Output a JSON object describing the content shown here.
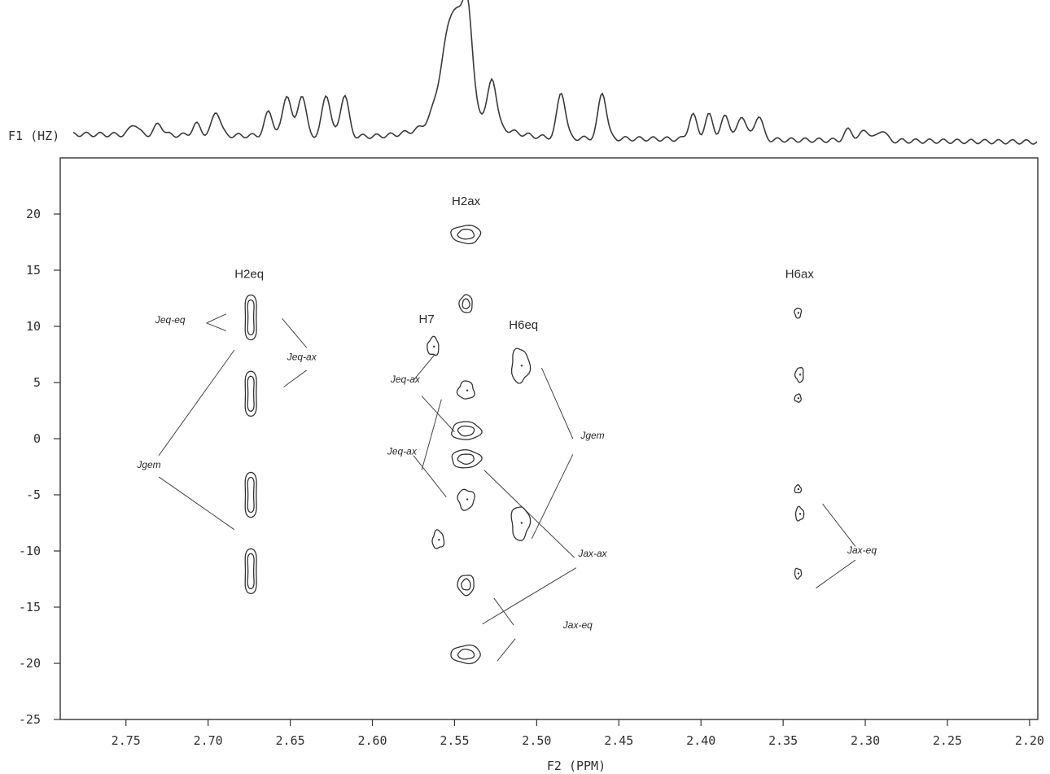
{
  "chart_data": {
    "type": "contour",
    "x_axis": {
      "label": "F2 (PPM)",
      "range": [
        2.79,
        2.195
      ],
      "reversed": true,
      "ticks": [
        2.75,
        2.7,
        2.65,
        2.6,
        2.55,
        2.5,
        2.45,
        2.4,
        2.35,
        2.3,
        2.25,
        2.2
      ],
      "tick_labels": [
        "2.75",
        "2.70",
        "2.65",
        "2.60",
        "2.55",
        "2.50",
        "2.45",
        "2.40",
        "2.35",
        "2.30",
        "2.25",
        "2.20"
      ]
    },
    "y_axis": {
      "label": "F1 (HZ)",
      "range": [
        -25,
        25
      ],
      "ticks": [
        20,
        15,
        10,
        5,
        0,
        -5,
        -10,
        -15,
        -20,
        -25
      ],
      "tick_labels": [
        "20",
        "15",
        "10",
        "5",
        "0",
        "-5",
        "-10",
        "-15",
        "-20",
        "-25"
      ]
    },
    "grid": false,
    "projection": {
      "axis": "F2",
      "peaks_ppm": [
        2.745,
        2.73,
        2.707,
        2.695,
        2.663,
        2.652,
        2.643,
        2.628,
        2.617,
        2.55,
        2.542,
        2.527,
        2.485,
        2.46,
        2.405,
        2.395,
        2.385,
        2.375,
        2.365,
        2.31,
        2.3,
        2.29
      ]
    },
    "peak_labels": [
      {
        "text": "H2ax",
        "x": 2.543,
        "y": 20.8
      },
      {
        "text": "H2eq",
        "x": 2.675,
        "y": 14.3
      },
      {
        "text": "H7",
        "x": 2.567,
        "y": 10.3
      },
      {
        "text": "H6eq",
        "x": 2.508,
        "y": 9.8
      },
      {
        "text": "H6ax",
        "x": 2.34,
        "y": 14.3
      }
    ],
    "coupling_labels": [
      {
        "text": "Jeq-eq",
        "x": 2.723,
        "y": 10.3
      },
      {
        "text": "Jeq-ax",
        "x": 2.643,
        "y": 7.0
      },
      {
        "text": "Jeq-ax",
        "x": 2.58,
        "y": 5.0
      },
      {
        "text": "Jeq-ax",
        "x": 2.582,
        "y": -1.4
      },
      {
        "text": "Jgem",
        "x": 2.736,
        "y": -2.6
      },
      {
        "text": "Jgem",
        "x": 2.466,
        "y": 0.0
      },
      {
        "text": "Jax-ax",
        "x": 2.466,
        "y": -10.5
      },
      {
        "text": "Jax-eq",
        "x": 2.475,
        "y": -16.9
      },
      {
        "text": "Jax-eq",
        "x": 2.302,
        "y": -10.2
      }
    ],
    "cross_peaks": [
      {
        "group": "H2eq",
        "x": 2.674,
        "y": 10.8,
        "rx": 0.006,
        "ry": 2.0,
        "shape": "hourglass"
      },
      {
        "group": "H2eq",
        "x": 2.674,
        "y": 4.0,
        "rx": 0.006,
        "ry": 2.0,
        "shape": "hourglass"
      },
      {
        "group": "H2eq",
        "x": 2.674,
        "y": -5.0,
        "rx": 0.006,
        "ry": 2.0,
        "shape": "hourglass"
      },
      {
        "group": "H2eq",
        "x": 2.674,
        "y": -11.8,
        "rx": 0.006,
        "ry": 2.0,
        "shape": "hourglass"
      },
      {
        "group": "H2ax",
        "x": 2.543,
        "y": 18.2,
        "rx": 0.009,
        "ry": 0.8,
        "shape": "nested"
      },
      {
        "group": "H2ax",
        "x": 2.543,
        "y": 12.0,
        "rx": 0.004,
        "ry": 0.8,
        "shape": "nested"
      },
      {
        "group": "H2ax",
        "x": 2.543,
        "y": 4.3,
        "rx": 0.005,
        "ry": 0.8,
        "shape": "single"
      },
      {
        "group": "H2ax",
        "x": 2.543,
        "y": 0.7,
        "rx": 0.009,
        "ry": 0.8,
        "shape": "nested"
      },
      {
        "group": "H2ax",
        "x": 2.543,
        "y": -1.8,
        "rx": 0.009,
        "ry": 0.8,
        "shape": "nested"
      },
      {
        "group": "H2ax",
        "x": 2.543,
        "y": -5.4,
        "rx": 0.005,
        "ry": 0.9,
        "shape": "single"
      },
      {
        "group": "H2ax",
        "x": 2.543,
        "y": -13.0,
        "rx": 0.005,
        "ry": 0.9,
        "shape": "nested"
      },
      {
        "group": "H2ax",
        "x": 2.543,
        "y": -19.2,
        "rx": 0.009,
        "ry": 0.8,
        "shape": "nested"
      },
      {
        "group": "H7",
        "x": 2.563,
        "y": 8.2,
        "rx": 0.0035,
        "ry": 0.8,
        "shape": "single"
      },
      {
        "group": "H7",
        "x": 2.56,
        "y": -9.0,
        "rx": 0.0035,
        "ry": 0.8,
        "shape": "single"
      },
      {
        "group": "H6eq",
        "x": 2.51,
        "y": 6.5,
        "rx": 0.0055,
        "ry": 1.5,
        "shape": "single"
      },
      {
        "group": "H6eq",
        "x": 2.51,
        "y": -7.5,
        "rx": 0.0055,
        "ry": 1.5,
        "shape": "single"
      },
      {
        "group": "H6ax",
        "x": 2.341,
        "y": 11.2,
        "rx": 0.002,
        "ry": 0.45,
        "shape": "single"
      },
      {
        "group": "H6ax",
        "x": 2.34,
        "y": 5.7,
        "rx": 0.0025,
        "ry": 0.65,
        "shape": "single"
      },
      {
        "group": "H6ax",
        "x": 2.341,
        "y": 3.6,
        "rx": 0.002,
        "ry": 0.35,
        "shape": "single"
      },
      {
        "group": "H6ax",
        "x": 2.341,
        "y": -4.5,
        "rx": 0.002,
        "ry": 0.35,
        "shape": "single"
      },
      {
        "group": "H6ax",
        "x": 2.34,
        "y": -6.7,
        "rx": 0.0025,
        "ry": 0.6,
        "shape": "single"
      },
      {
        "group": "H6ax",
        "x": 2.341,
        "y": -12.0,
        "rx": 0.002,
        "ry": 0.45,
        "shape": "single"
      }
    ],
    "leader_lines": [
      {
        "x1": 2.701,
        "y1": 10.3,
        "x2": 2.689,
        "y2": 11.1
      },
      {
        "x1": 2.701,
        "y1": 10.3,
        "x2": 2.689,
        "y2": 9.6
      },
      {
        "x1": 2.655,
        "y1": 10.7,
        "x2": 2.64,
        "y2": 8.1
      },
      {
        "x1": 2.64,
        "y1": 6.1,
        "x2": 2.654,
        "y2": 4.6
      },
      {
        "x1": 2.575,
        "y1": 5.2,
        "x2": 2.562,
        "y2": 7.5
      },
      {
        "x1": 2.57,
        "y1": 3.8,
        "x2": 2.55,
        "y2": 0.6
      },
      {
        "x1": 2.575,
        "y1": -1.5,
        "x2": 2.555,
        "y2": -5.2
      },
      {
        "x1": 2.57,
        "y1": -2.8,
        "x2": 2.558,
        "y2": 3.5
      },
      {
        "x1": 2.73,
        "y1": -1.5,
        "x2": 2.684,
        "y2": 7.9
      },
      {
        "x1": 2.73,
        "y1": -3.4,
        "x2": 2.684,
        "y2": -8.1
      },
      {
        "x1": 2.478,
        "y1": 0.0,
        "x2": 2.497,
        "y2": 6.3
      },
      {
        "x1": 2.478,
        "y1": -1.4,
        "x2": 2.503,
        "y2": -8.9
      },
      {
        "x1": 2.477,
        "y1": -10.6,
        "x2": 2.532,
        "y2": -2.8
      },
      {
        "x1": 2.476,
        "y1": -11.5,
        "x2": 2.533,
        "y2": -16.5
      },
      {
        "x1": 2.526,
        "y1": -14.2,
        "x2": 2.514,
        "y2": -16.6
      },
      {
        "x1": 2.513,
        "y1": -17.8,
        "x2": 2.524,
        "y2": -19.8
      },
      {
        "x1": 2.306,
        "y1": -9.6,
        "x2": 2.326,
        "y2": -5.8
      },
      {
        "x1": 2.306,
        "y1": -10.8,
        "x2": 2.33,
        "y2": -13.3
      }
    ]
  }
}
